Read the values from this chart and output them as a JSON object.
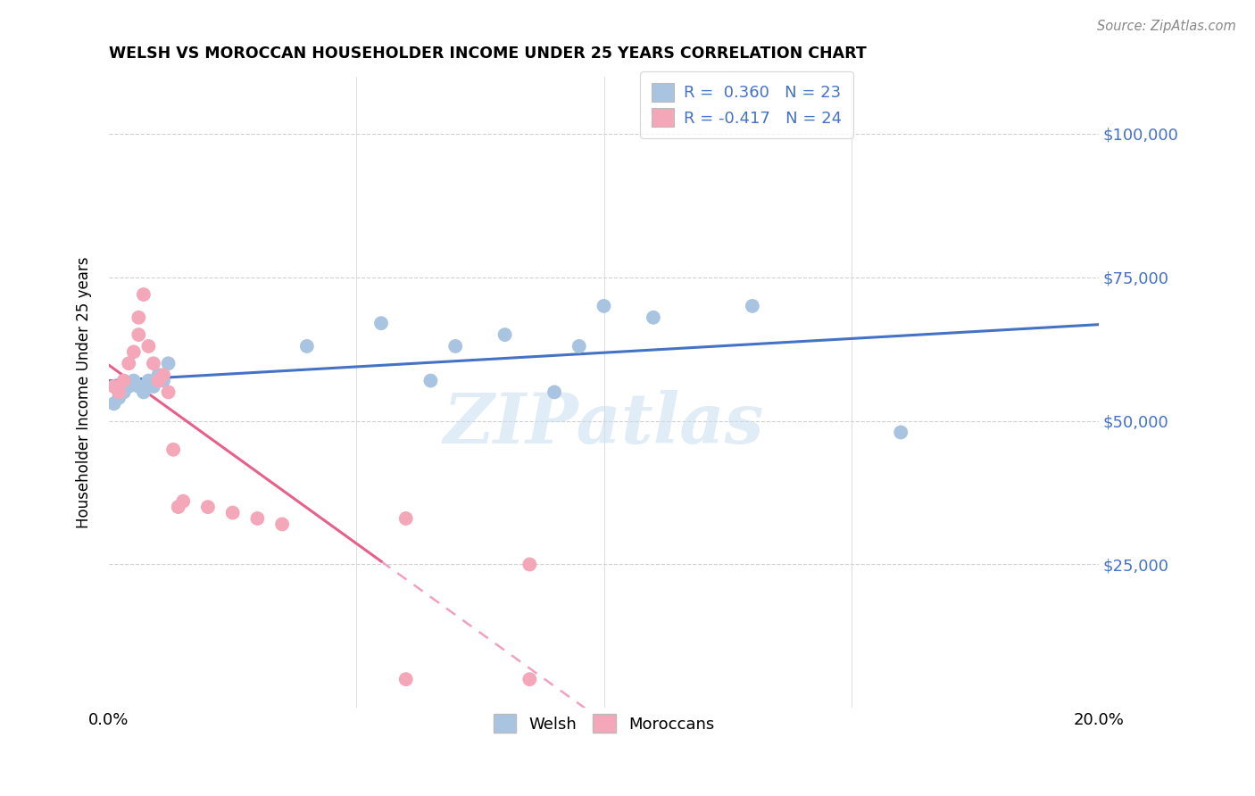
{
  "title": "WELSH VS MOROCCAN HOUSEHOLDER INCOME UNDER 25 YEARS CORRELATION CHART",
  "source": "Source: ZipAtlas.com",
  "ylabel": "Householder Income Under 25 years",
  "xlim": [
    0.0,
    0.2
  ],
  "ylim": [
    0,
    110000
  ],
  "yticks": [
    0,
    25000,
    50000,
    75000,
    100000
  ],
  "ytick_labels_right": [
    "",
    "$25,000",
    "$50,000",
    "$75,000",
    "$100,000"
  ],
  "xticks": [
    0.0,
    0.05,
    0.1,
    0.15,
    0.2
  ],
  "xtick_labels": [
    "0.0%",
    "",
    "",
    "",
    "20.0%"
  ],
  "welsh_color": "#a8c4e0",
  "moroccan_color": "#f4a7b9",
  "welsh_line_color": "#4472c4",
  "moroccan_line_color": "#e8608a",
  "moroccan_line_dashed_color": "#f0a0c0",
  "tick_label_color": "#4472c4",
  "r_welsh": "0.360",
  "n_welsh": "23",
  "r_moroccan": "-0.417",
  "n_moroccan": "24",
  "watermark": "ZIPatlas",
  "welsh_x": [
    0.001,
    0.002,
    0.003,
    0.004,
    0.005,
    0.006,
    0.007,
    0.008,
    0.009,
    0.01,
    0.011,
    0.012,
    0.04,
    0.055,
    0.065,
    0.07,
    0.08,
    0.09,
    0.095,
    0.1,
    0.11,
    0.13,
    0.16
  ],
  "welsh_y": [
    53000,
    54000,
    55000,
    56000,
    57000,
    56000,
    55000,
    57000,
    56000,
    58000,
    57000,
    60000,
    63000,
    67000,
    57000,
    63000,
    65000,
    55000,
    63000,
    70000,
    68000,
    70000,
    48000
  ],
  "moroccan_x": [
    0.001,
    0.002,
    0.003,
    0.004,
    0.005,
    0.006,
    0.006,
    0.007,
    0.008,
    0.009,
    0.01,
    0.011,
    0.012,
    0.013,
    0.014,
    0.015,
    0.02,
    0.025,
    0.03,
    0.035,
    0.06,
    0.085,
    0.06,
    0.085
  ],
  "moroccan_y": [
    56000,
    55000,
    57000,
    60000,
    62000,
    65000,
    68000,
    72000,
    63000,
    60000,
    57000,
    58000,
    55000,
    45000,
    35000,
    36000,
    35000,
    34000,
    33000,
    32000,
    5000,
    5000,
    33000,
    25000
  ]
}
